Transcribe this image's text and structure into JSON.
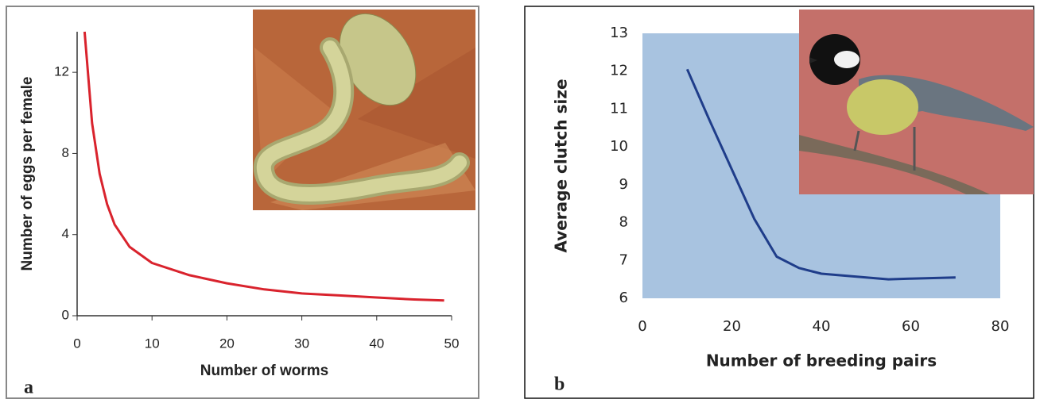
{
  "chart_data": [
    {
      "type": "line",
      "panel_label": "a",
      "x_label": "Number of worms",
      "y_label": "Number of eggs per female",
      "x": [
        1,
        2,
        3,
        4,
        5,
        7,
        10,
        15,
        20,
        25,
        30,
        35,
        40,
        45,
        49
      ],
      "series": [
        {
          "color": "#d9232d",
          "values": [
            14,
            9.5,
            7,
            5.5,
            4.5,
            3.4,
            2.6,
            2,
            1.6,
            1.3,
            1.1,
            1,
            0.9,
            0.8,
            0.75
          ]
        }
      ],
      "xlim": [
        0,
        50
      ],
      "xticks": [
        0,
        10,
        20,
        30,
        40,
        50
      ],
      "ylim": [
        0,
        14
      ],
      "yticks": [
        0,
        4,
        8,
        12
      ]
    },
    {
      "type": "line",
      "panel_label": "b",
      "x_label": "Number of breeding pairs",
      "y_label": "Average clutch size",
      "x": [
        10,
        15,
        20,
        25,
        30,
        35,
        40,
        50,
        55,
        60,
        70
      ],
      "series": [
        {
          "color": "#1f3d8a",
          "values": [
            12.05,
            10.7,
            9.4,
            8.1,
            7.1,
            6.8,
            6.65,
            6.55,
            6.5,
            6.52,
            6.55
          ]
        }
      ],
      "plot_background": "#a8c3e0",
      "xlim": [
        0,
        80
      ],
      "xticks": [
        0,
        20,
        40,
        60,
        80
      ],
      "ylim": [
        6,
        13
      ],
      "yticks": [
        6,
        7,
        8,
        9,
        10,
        11,
        12,
        13
      ]
    }
  ]
}
